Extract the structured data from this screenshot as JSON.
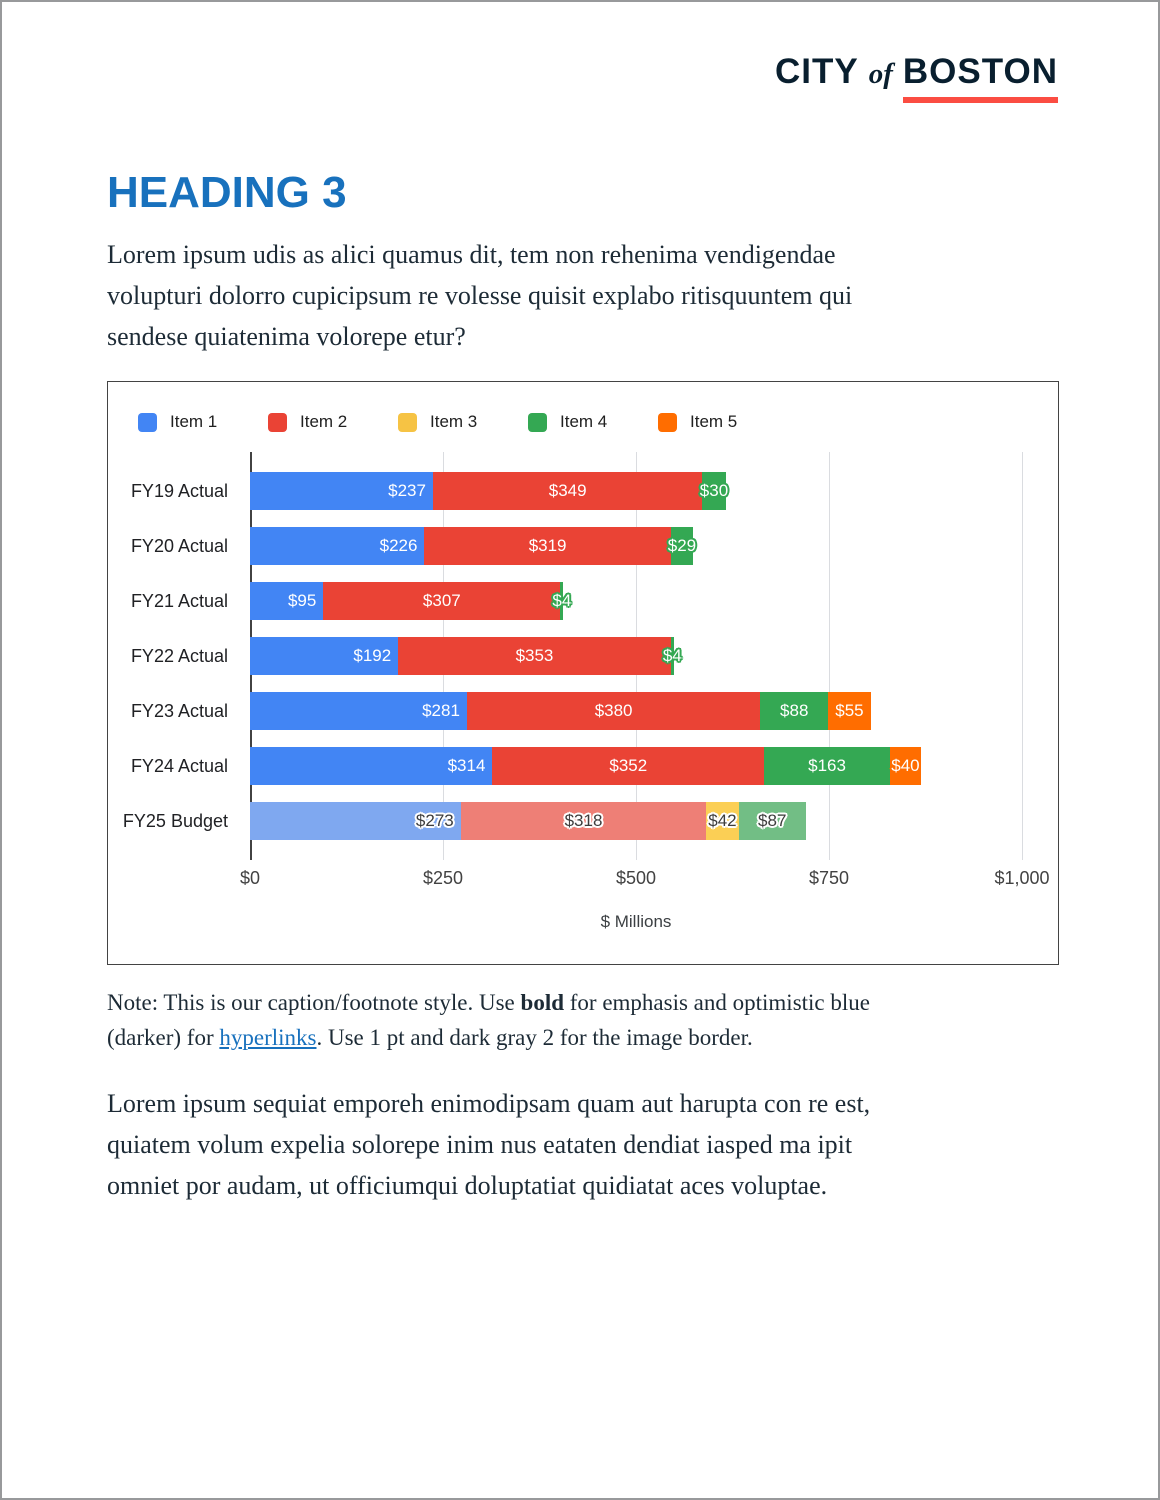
{
  "header": {
    "logo": {
      "city": "CITY",
      "of": "of",
      "boston": "BOSTON",
      "navy": "#091F2F",
      "red": "#FB4D42"
    }
  },
  "heading": {
    "text": "HEADING 3",
    "color": "#1871BD"
  },
  "intro_paragraph": {
    "lines": [
      "Lorem ipsum udis as alici quamus dit, tem non rehenima vendigendae",
      "volupturi dolorro cupicipsum re volesse quisit explabo ritisquuntem qui",
      "sendese quiatenima volorepe etur?"
    ]
  },
  "chart_data": {
    "type": "bar",
    "orientation": "horizontal",
    "stacked": true,
    "title": "",
    "xlabel": "$ Millions",
    "ylabel": "",
    "xlim": [
      0,
      1000
    ],
    "grid": true,
    "legend_position": "top",
    "value_prefix": "$",
    "x_ticks": [
      {
        "label": "$0",
        "value": 0
      },
      {
        "label": "$250",
        "value": 250
      },
      {
        "label": "$500",
        "value": 500
      },
      {
        "label": "$750",
        "value": 750
      },
      {
        "label": "$1,000",
        "value": 1000
      }
    ],
    "categories": [
      "FY19 Actual",
      "FY20 Actual",
      "FY21 Actual",
      "FY22 Actual",
      "FY23 Actual",
      "FY24 Actual",
      "FY25 Budget"
    ],
    "series": [
      {
        "name": "Item 1",
        "color": "#4285F4",
        "muted_color": "#7FA8F0",
        "values": [
          237,
          226,
          95,
          192,
          281,
          314,
          273
        ]
      },
      {
        "name": "Item 2",
        "color": "#EA4335",
        "muted_color": "#EE7F76",
        "values": [
          349,
          319,
          307,
          353,
          380,
          352,
          318
        ]
      },
      {
        "name": "Item 3",
        "color": "#F6C344",
        "muted_color": "#FBCF55",
        "values": [
          0,
          0,
          0,
          0,
          0,
          0,
          42
        ]
      },
      {
        "name": "Item 4",
        "color": "#34A853",
        "muted_color": "#72BE85",
        "values": [
          30,
          29,
          4,
          4,
          88,
          163,
          87
        ]
      },
      {
        "name": "Item 5",
        "color": "#FF6D00",
        "muted_color": "#FFA35C",
        "values": [
          0,
          0,
          0,
          0,
          55,
          40,
          0
        ]
      }
    ],
    "muted_category_index": 6,
    "annotations_note": "segment dollar labels shown on bars, e.g. $237"
  },
  "note": {
    "segments": [
      {
        "text": "Note: This is our caption/footnote style. Use ",
        "style": "normal"
      },
      {
        "text": "bold",
        "style": "bold"
      },
      {
        "text": " for emphasis and optimistic blue\n(darker) for ",
        "style": "normal"
      },
      {
        "text": "hyperlinks",
        "style": "link"
      },
      {
        "text": ". Use 1 pt and dark gray 2 for the image border.",
        "style": "normal"
      }
    ]
  },
  "closing_paragraph": {
    "lines": [
      "Lorem ipsum sequiat emporeh enimodipsam quam aut harupta con re est,",
      "quiatem volum expelia solorepe inim nus eataten dendiat iasped ma ipit",
      "omniet por audam, ut officiumqui doluptatiat quidiatat aces voluptae."
    ]
  }
}
